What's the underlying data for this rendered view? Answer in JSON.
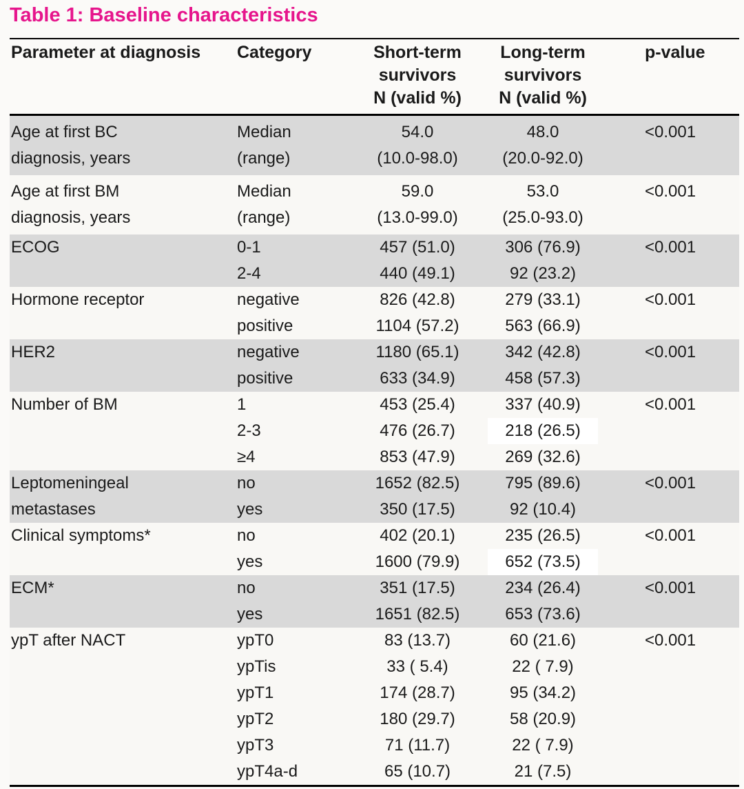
{
  "title": {
    "text": "Table 1: Baseline characteristics",
    "color": "#e6158c"
  },
  "table": {
    "header": {
      "parameter": "Parameter at diagnosis",
      "category": "Category",
      "short_lines": [
        "Short-term",
        "survivors",
        "N (valid %)"
      ],
      "long_lines": [
        "Long-term",
        "survivors",
        "N (valid %)"
      ],
      "p": "p-value"
    },
    "colors": {
      "shaded_row": "#d9d9d9",
      "plain_row": "#f9f8f5",
      "highlight_cell": "#ffffff",
      "border": "#000000"
    },
    "rows": [
      {
        "parameter_lines": [
          "Age at first BC",
          "diagnosis, years"
        ],
        "shaded": true,
        "categories": [
          "Median",
          "(range)"
        ],
        "short": [
          "54.0",
          "(10.0-98.0)"
        ],
        "long": [
          "48.0",
          "(20.0-92.0)"
        ],
        "p": "<0.001"
      },
      {
        "parameter_lines": [
          "Age at first BM",
          "diagnosis, years"
        ],
        "shaded": false,
        "categories": [
          "Median",
          "(range)"
        ],
        "short": [
          "59.0",
          "(13.0-99.0)"
        ],
        "long": [
          "53.0",
          "(25.0-93.0)"
        ],
        "p": "<0.001"
      },
      {
        "parameter_lines": [
          "ECOG"
        ],
        "shaded": true,
        "categories": [
          "0-1",
          "2-4"
        ],
        "short": [
          "457 (51.0)",
          "440 (49.1)"
        ],
        "long": [
          "306 (76.9)",
          "92 (23.2)"
        ],
        "p": "<0.001"
      },
      {
        "parameter_lines": [
          "Hormone receptor"
        ],
        "shaded": false,
        "categories": [
          "negative",
          "positive"
        ],
        "short": [
          "826 (42.8)",
          "1104 (57.2)"
        ],
        "long": [
          "279 (33.1)",
          "563 (66.9)"
        ],
        "p": "<0.001"
      },
      {
        "parameter_lines": [
          "HER2"
        ],
        "shaded": true,
        "categories": [
          "negative",
          "positive"
        ],
        "short": [
          "1180 (65.1)",
          "633 (34.9)"
        ],
        "long": [
          "342 (42.8)",
          "458 (57.3)"
        ],
        "p": "<0.001"
      },
      {
        "parameter_lines": [
          "Number of BM"
        ],
        "shaded": false,
        "categories": [
          "1",
          "2-3",
          "≥4"
        ],
        "short": [
          "453 (25.4)",
          "476 (26.7)",
          "853 (47.9)"
        ],
        "long": [
          "337 (40.9)",
          "218 (26.5)",
          "269 (32.6)"
        ],
        "highlight_long": [
          1
        ],
        "p": "<0.001"
      },
      {
        "parameter_lines": [
          "Leptomeningeal",
          "metastases"
        ],
        "shaded": true,
        "categories": [
          "no",
          "yes"
        ],
        "short": [
          "1652 (82.5)",
          "350 (17.5)"
        ],
        "long": [
          "795 (89.6)",
          "92 (10.4)"
        ],
        "p": "<0.001"
      },
      {
        "parameter_lines": [
          "Clinical symptoms*"
        ],
        "shaded": false,
        "categories": [
          "no",
          "yes"
        ],
        "short": [
          "402 (20.1)",
          "1600 (79.9)"
        ],
        "long": [
          "235 (26.5)",
          "652 (73.5)"
        ],
        "highlight_long": [
          1
        ],
        "p": "<0.001"
      },
      {
        "parameter_lines": [
          "ECM*"
        ],
        "shaded": true,
        "categories": [
          "no",
          "yes"
        ],
        "short": [
          "351 (17.5)",
          "1651 (82.5)"
        ],
        "long": [
          "234 (26.4)",
          "653 (73.6)"
        ],
        "p": "<0.001"
      },
      {
        "parameter_lines": [
          "ypT after NACT"
        ],
        "shaded": false,
        "categories": [
          "ypT0",
          "ypTis",
          "ypT1",
          "ypT2",
          "ypT3",
          "ypT4a-d"
        ],
        "short": [
          "83 (13.7)",
          "33 ( 5.4)",
          "174 (28.7)",
          "180 (29.7)",
          "71 (11.7)",
          "65 (10.7)"
        ],
        "long": [
          "60 (21.6)",
          "22 ( 7.9)",
          "95 (34.2)",
          "58 (20.9)",
          "22 ( 7.9)",
          "21 (7.5)"
        ],
        "p": "<0.001"
      }
    ]
  }
}
